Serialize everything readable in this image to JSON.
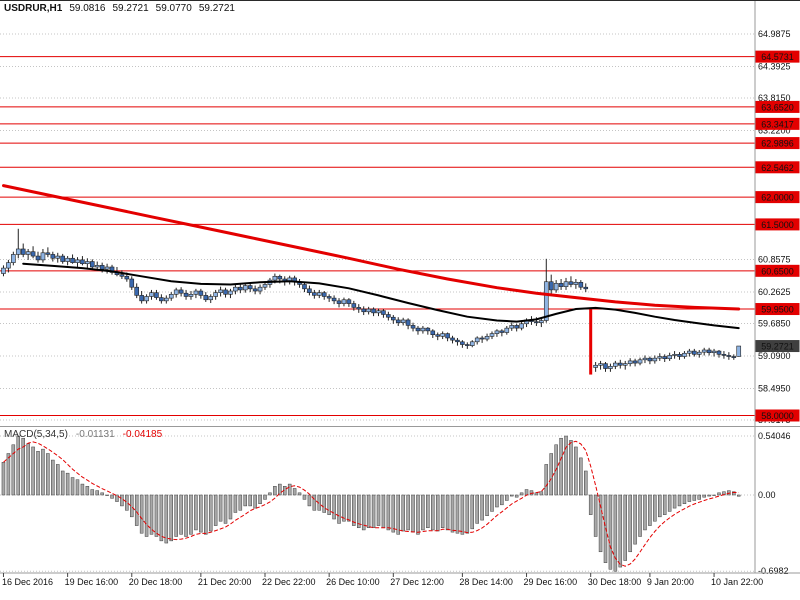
{
  "header": {
    "symbol_period": "USDRUR,H1",
    "open": "59.0816",
    "high": "59.2721",
    "low": "59.0770",
    "close": "59.2721"
  },
  "indicator_header": {
    "label": "MACD(5,34,5)",
    "macd_value": "-0.01131",
    "signal_value": "-0.04185"
  },
  "colors": {
    "grid": "#c4c4c4",
    "level": "#e30000",
    "wick": "#222222",
    "candle_up": "#8fb4e3",
    "candle_down": "#3a68ad",
    "red_bar": "#e80000",
    "ma_red": "#e30000",
    "ma_black": "#000000",
    "hist_fill": "#a8a8a8",
    "hist_stroke": "#3f3f3f",
    "signal": "#e30000",
    "badge_red": "#e30000",
    "badge_dark": "#3f3f3f",
    "badge_text": "#ffffff",
    "frame": "#9a9a9a",
    "tick": "#444444",
    "text": "#111111"
  },
  "chart_data": {
    "type": "candlestick",
    "symbol": "USDRUR",
    "timeframe": "H1",
    "sub_chart": "MACD(5,34,5) histogram with signal line",
    "main_ylim": [
      57.826,
      65.592
    ],
    "macd_ylim": [
      -0.7143,
      0.6136
    ],
    "price_axis": [
      64.9875,
      64.3925,
      63.815,
      63.22,
      60.8575,
      60.2625,
      59.685,
      59.09,
      58.495,
      57.9175
    ],
    "macd_axis": [
      {
        "v": 0.54046,
        "label": "0.54046"
      },
      {
        "v": 0.0,
        "label": "0.00"
      },
      {
        "v": -0.6982,
        "label": "-0.6982"
      }
    ],
    "levels": [
      64.5731,
      63.652,
      63.3417,
      62.9896,
      62.5462,
      62.0,
      61.5,
      60.65,
      59.95,
      58.0
    ],
    "current_price": 59.2721,
    "time_axis": [
      {
        "i": 0,
        "label": "16 Dec 2016"
      },
      {
        "i": 13,
        "label": "19 Dec 16:00"
      },
      {
        "i": 26,
        "label": "20 Dec 18:00"
      },
      {
        "i": 40,
        "label": "21 Dec 20:00"
      },
      {
        "i": 53,
        "label": "22 Dec 22:00"
      },
      {
        "i": 66,
        "label": "26 Dec 10:00"
      },
      {
        "i": 79,
        "label": "27 Dec 12:00"
      },
      {
        "i": 93,
        "label": "28 Dec 14:00"
      },
      {
        "i": 106,
        "label": "29 Dec 16:00"
      },
      {
        "i": 119,
        "label": "30 Dec 18:00"
      },
      {
        "i": 131,
        "label": "9 Jan 20:00"
      },
      {
        "i": 144,
        "label": "10 Jan 22:00"
      }
    ],
    "red_bar_index": 119,
    "candles": [
      [
        60.6,
        60.75,
        60.55,
        60.7
      ],
      [
        60.7,
        60.85,
        60.62,
        60.8
      ],
      [
        60.8,
        61.0,
        60.75,
        60.95
      ],
      [
        60.95,
        61.42,
        60.88,
        61.05
      ],
      [
        61.05,
        61.15,
        60.9,
        60.95
      ],
      [
        60.95,
        61.05,
        60.85,
        61.0
      ],
      [
        61.0,
        61.1,
        60.88,
        60.92
      ],
      [
        60.92,
        61.0,
        60.8,
        60.85
      ],
      [
        60.85,
        61.05,
        60.8,
        60.98
      ],
      [
        60.98,
        61.08,
        60.9,
        60.95
      ],
      [
        60.95,
        61.0,
        60.82,
        60.88
      ],
      [
        60.88,
        60.98,
        60.8,
        60.92
      ],
      [
        60.92,
        60.96,
        60.78,
        60.82
      ],
      [
        60.82,
        60.92,
        60.75,
        60.88
      ],
      [
        60.88,
        60.95,
        60.78,
        60.8
      ],
      [
        60.8,
        60.9,
        60.72,
        60.85
      ],
      [
        60.85,
        60.92,
        60.75,
        60.78
      ],
      [
        60.78,
        60.88,
        60.7,
        60.82
      ],
      [
        60.82,
        60.86,
        60.68,
        60.72
      ],
      [
        60.72,
        60.82,
        60.65,
        60.75
      ],
      [
        60.75,
        60.8,
        60.62,
        60.68
      ],
      [
        60.68,
        60.78,
        60.6,
        60.72
      ],
      [
        60.72,
        60.76,
        60.58,
        60.62
      ],
      [
        60.62,
        60.72,
        60.55,
        60.58
      ],
      [
        60.58,
        60.66,
        60.5,
        60.55
      ],
      [
        60.55,
        60.62,
        60.45,
        60.5
      ],
      [
        60.5,
        60.55,
        60.3,
        60.35
      ],
      [
        60.35,
        60.42,
        60.15,
        60.2
      ],
      [
        60.2,
        60.28,
        60.05,
        60.1
      ],
      [
        60.1,
        60.22,
        60.05,
        60.18
      ],
      [
        60.18,
        60.3,
        60.12,
        60.25
      ],
      [
        60.25,
        60.3,
        60.12,
        60.16
      ],
      [
        60.16,
        60.22,
        60.05,
        60.1
      ],
      [
        60.1,
        60.2,
        60.05,
        60.15
      ],
      [
        60.15,
        60.26,
        60.1,
        60.22
      ],
      [
        60.22,
        60.34,
        60.16,
        60.3
      ],
      [
        60.3,
        60.35,
        60.18,
        60.24
      ],
      [
        60.24,
        60.3,
        60.12,
        60.18
      ],
      [
        60.18,
        60.28,
        60.12,
        60.22
      ],
      [
        60.22,
        60.32,
        60.15,
        60.28
      ],
      [
        60.28,
        60.32,
        60.14,
        60.2
      ],
      [
        60.2,
        60.26,
        60.08,
        60.12
      ],
      [
        60.12,
        60.22,
        60.06,
        60.18
      ],
      [
        60.18,
        60.3,
        60.12,
        60.25
      ],
      [
        60.25,
        60.36,
        60.18,
        60.3
      ],
      [
        60.3,
        60.34,
        60.16,
        60.22
      ],
      [
        60.22,
        60.32,
        60.15,
        60.28
      ],
      [
        60.28,
        60.4,
        60.22,
        60.35
      ],
      [
        60.35,
        60.4,
        60.24,
        60.3
      ],
      [
        60.3,
        60.42,
        60.25,
        60.38
      ],
      [
        60.38,
        60.44,
        60.26,
        60.32
      ],
      [
        60.32,
        60.38,
        60.22,
        60.28
      ],
      [
        60.28,
        60.4,
        60.22,
        60.35
      ],
      [
        60.35,
        60.46,
        60.3,
        60.4
      ],
      [
        60.4,
        60.52,
        60.34,
        60.48
      ],
      [
        60.48,
        60.6,
        60.42,
        60.55
      ],
      [
        60.55,
        60.58,
        60.42,
        60.5
      ],
      [
        60.5,
        60.55,
        60.38,
        60.45
      ],
      [
        60.45,
        60.56,
        60.4,
        60.52
      ],
      [
        60.52,
        60.56,
        60.38,
        60.45
      ],
      [
        60.45,
        60.5,
        60.34,
        60.4
      ],
      [
        60.4,
        60.45,
        60.26,
        60.32
      ],
      [
        60.32,
        60.38,
        60.2,
        60.25
      ],
      [
        60.25,
        60.3,
        60.14,
        60.2
      ],
      [
        60.2,
        60.3,
        60.15,
        60.25
      ],
      [
        60.25,
        60.28,
        60.12,
        60.18
      ],
      [
        60.18,
        60.22,
        60.08,
        60.15
      ],
      [
        60.15,
        60.2,
        60.04,
        60.1
      ],
      [
        60.1,
        60.15,
        59.98,
        60.05
      ],
      [
        60.05,
        60.16,
        60.0,
        60.12
      ],
      [
        60.12,
        60.15,
        59.99,
        60.05
      ],
      [
        60.05,
        60.1,
        59.92,
        59.98
      ],
      [
        59.98,
        60.04,
        59.88,
        59.95
      ],
      [
        59.95,
        60.0,
        59.84,
        59.9
      ],
      [
        59.9,
        59.99,
        59.85,
        59.95
      ],
      [
        59.95,
        59.98,
        59.82,
        59.88
      ],
      [
        59.88,
        59.96,
        59.82,
        59.92
      ],
      [
        59.92,
        59.95,
        59.79,
        59.85
      ],
      [
        59.85,
        59.9,
        59.74,
        59.8
      ],
      [
        59.8,
        59.84,
        59.68,
        59.75
      ],
      [
        59.75,
        59.8,
        59.64,
        59.7
      ],
      [
        59.7,
        59.79,
        59.65,
        59.75
      ],
      [
        59.75,
        59.78,
        59.58,
        59.65
      ],
      [
        59.65,
        59.7,
        59.54,
        59.6
      ],
      [
        59.6,
        59.64,
        59.48,
        59.55
      ],
      [
        59.55,
        59.64,
        59.5,
        59.6
      ],
      [
        59.6,
        59.62,
        59.48,
        59.55
      ],
      [
        59.55,
        59.58,
        59.42,
        59.48
      ],
      [
        59.48,
        59.52,
        59.38,
        59.45
      ],
      [
        59.45,
        59.54,
        59.4,
        59.5
      ],
      [
        59.5,
        59.52,
        59.36,
        59.42
      ],
      [
        59.42,
        59.46,
        59.32,
        59.38
      ],
      [
        59.38,
        59.42,
        59.28,
        59.35
      ],
      [
        59.35,
        59.38,
        59.24,
        59.3
      ],
      [
        59.3,
        59.34,
        59.22,
        59.28
      ],
      [
        59.28,
        59.38,
        59.25,
        59.35
      ],
      [
        59.35,
        59.45,
        59.3,
        59.42
      ],
      [
        59.42,
        59.46,
        59.33,
        59.4
      ],
      [
        59.4,
        59.5,
        59.36,
        59.45
      ],
      [
        59.45,
        59.54,
        59.4,
        59.5
      ],
      [
        59.5,
        59.58,
        59.44,
        59.55
      ],
      [
        59.55,
        59.58,
        59.45,
        59.52
      ],
      [
        59.52,
        59.64,
        59.48,
        59.6
      ],
      [
        59.6,
        59.7,
        59.55,
        59.65
      ],
      [
        59.65,
        59.68,
        59.54,
        59.6
      ],
      [
        59.6,
        59.72,
        59.56,
        59.68
      ],
      [
        59.68,
        59.78,
        59.62,
        59.75
      ],
      [
        59.75,
        59.82,
        59.66,
        59.72
      ],
      [
        59.72,
        59.8,
        59.64,
        59.7
      ],
      [
        59.7,
        59.78,
        59.62,
        59.74
      ],
      [
        59.74,
        60.87,
        59.7,
        60.45
      ],
      [
        60.45,
        60.58,
        60.2,
        60.3
      ],
      [
        60.3,
        60.48,
        60.25,
        60.42
      ],
      [
        60.42,
        60.5,
        60.3,
        60.36
      ],
      [
        60.36,
        60.52,
        60.3,
        60.45
      ],
      [
        60.45,
        60.55,
        60.35,
        60.4
      ],
      [
        60.4,
        60.5,
        60.32,
        60.44
      ],
      [
        60.44,
        60.48,
        60.3,
        60.35
      ],
      [
        60.35,
        60.42,
        60.26,
        60.32
      ],
      [
        59.95,
        59.95,
        58.75,
        58.88
      ],
      [
        58.88,
        58.98,
        58.8,
        58.92
      ],
      [
        58.92,
        59.0,
        58.84,
        58.95
      ],
      [
        58.95,
        58.98,
        58.8,
        58.86
      ],
      [
        58.86,
        58.95,
        58.8,
        58.9
      ],
      [
        58.9,
        59.0,
        58.85,
        58.96
      ],
      [
        58.96,
        59.02,
        58.86,
        58.92
      ],
      [
        58.92,
        59.0,
        58.84,
        58.95
      ],
      [
        58.95,
        59.05,
        58.9,
        59.0
      ],
      [
        59.0,
        59.04,
        58.9,
        58.96
      ],
      [
        58.96,
        59.06,
        58.92,
        59.02
      ],
      [
        59.02,
        59.1,
        58.96,
        59.05
      ],
      [
        59.05,
        59.08,
        58.94,
        59.0
      ],
      [
        59.0,
        59.1,
        58.95,
        59.05
      ],
      [
        59.05,
        59.14,
        59.0,
        59.08
      ],
      [
        59.08,
        59.12,
        58.98,
        59.04
      ],
      [
        59.04,
        59.15,
        59.0,
        59.1
      ],
      [
        59.1,
        59.18,
        59.04,
        59.12
      ],
      [
        59.12,
        59.16,
        59.02,
        59.08
      ],
      [
        59.08,
        59.18,
        59.04,
        59.14
      ],
      [
        59.14,
        59.22,
        59.08,
        59.18
      ],
      [
        59.18,
        59.22,
        59.08,
        59.12
      ],
      [
        59.12,
        59.2,
        59.06,
        59.16
      ],
      [
        59.16,
        59.24,
        59.1,
        59.2
      ],
      [
        59.2,
        59.24,
        59.1,
        59.15
      ],
      [
        59.15,
        59.22,
        59.08,
        59.18
      ],
      [
        59.18,
        59.2,
        59.06,
        59.12
      ],
      [
        59.12,
        59.18,
        59.04,
        59.1
      ],
      [
        59.1,
        59.16,
        59.02,
        59.08
      ],
      [
        59.08,
        59.12,
        59.02,
        59.06
      ],
      [
        59.0816,
        59.2721,
        59.077,
        59.2721
      ]
    ],
    "macd": [
      0.3,
      0.38,
      0.46,
      0.54,
      0.52,
      0.47,
      0.44,
      0.4,
      0.42,
      0.38,
      0.32,
      0.28,
      0.22,
      0.2,
      0.16,
      0.14,
      0.1,
      0.08,
      0.05,
      0.04,
      0.02,
      0.0,
      -0.03,
      -0.06,
      -0.1,
      -0.14,
      -0.2,
      -0.28,
      -0.35,
      -0.38,
      -0.36,
      -0.38,
      -0.42,
      -0.44,
      -0.42,
      -0.38,
      -0.36,
      -0.38,
      -0.36,
      -0.32,
      -0.34,
      -0.36,
      -0.33,
      -0.28,
      -0.24,
      -0.26,
      -0.22,
      -0.16,
      -0.14,
      -0.1,
      -0.1,
      -0.12,
      -0.08,
      -0.04,
      0.02,
      0.08,
      0.1,
      0.08,
      0.1,
      0.06,
      0.02,
      -0.04,
      -0.1,
      -0.14,
      -0.14,
      -0.16,
      -0.18,
      -0.22,
      -0.26,
      -0.24,
      -0.24,
      -0.28,
      -0.3,
      -0.32,
      -0.3,
      -0.3,
      -0.28,
      -0.3,
      -0.32,
      -0.34,
      -0.36,
      -0.33,
      -0.32,
      -0.34,
      -0.36,
      -0.32,
      -0.3,
      -0.32,
      -0.33,
      -0.3,
      -0.32,
      -0.34,
      -0.35,
      -0.36,
      -0.35,
      -0.31,
      -0.26,
      -0.23,
      -0.19,
      -0.15,
      -0.11,
      -0.09,
      -0.05,
      -0.01,
      -0.02,
      0.02,
      0.05,
      0.04,
      0.02,
      0.03,
      0.28,
      0.38,
      0.46,
      0.52,
      0.54,
      0.5,
      0.44,
      0.34,
      0.22,
      -0.18,
      -0.38,
      -0.52,
      -0.62,
      -0.68,
      -0.6982,
      -0.66,
      -0.6,
      -0.52,
      -0.45,
      -0.38,
      -0.32,
      -0.28,
      -0.24,
      -0.2,
      -0.18,
      -0.15,
      -0.12,
      -0.1,
      -0.08,
      -0.06,
      -0.05,
      -0.04,
      -0.02,
      -0.01,
      0.0,
      0.02,
      0.03,
      0.04,
      0.03,
      -0.01131
    ],
    "ma_red_points": [
      [
        0,
        62.21
      ],
      [
        10,
        62.02
      ],
      [
        20,
        61.83
      ],
      [
        30,
        61.64
      ],
      [
        40,
        61.45
      ],
      [
        50,
        61.26
      ],
      [
        60,
        61.07
      ],
      [
        70,
        60.88
      ],
      [
        80,
        60.68
      ],
      [
        90,
        60.5
      ],
      [
        100,
        60.34
      ],
      [
        108,
        60.24
      ],
      [
        116,
        60.16
      ],
      [
        124,
        60.08
      ],
      [
        132,
        60.02
      ],
      [
        140,
        59.98
      ],
      [
        149,
        59.95
      ]
    ],
    "ma_black_points": [
      [
        4,
        60.78
      ],
      [
        10,
        60.74
      ],
      [
        16,
        60.7
      ],
      [
        22,
        60.64
      ],
      [
        28,
        60.55
      ],
      [
        34,
        60.46
      ],
      [
        40,
        60.41
      ],
      [
        46,
        60.4
      ],
      [
        52,
        60.44
      ],
      [
        58,
        60.46
      ],
      [
        64,
        60.42
      ],
      [
        70,
        60.33
      ],
      [
        76,
        60.2
      ],
      [
        82,
        60.06
      ],
      [
        88,
        59.93
      ],
      [
        94,
        59.81
      ],
      [
        100,
        59.74
      ],
      [
        104,
        59.72
      ],
      [
        108,
        59.76
      ],
      [
        112,
        59.86
      ],
      [
        116,
        59.95
      ],
      [
        120,
        59.97
      ],
      [
        124,
        59.94
      ],
      [
        128,
        59.88
      ],
      [
        132,
        59.81
      ],
      [
        136,
        59.75
      ],
      [
        140,
        59.7
      ],
      [
        144,
        59.65
      ],
      [
        149,
        59.6
      ]
    ]
  }
}
